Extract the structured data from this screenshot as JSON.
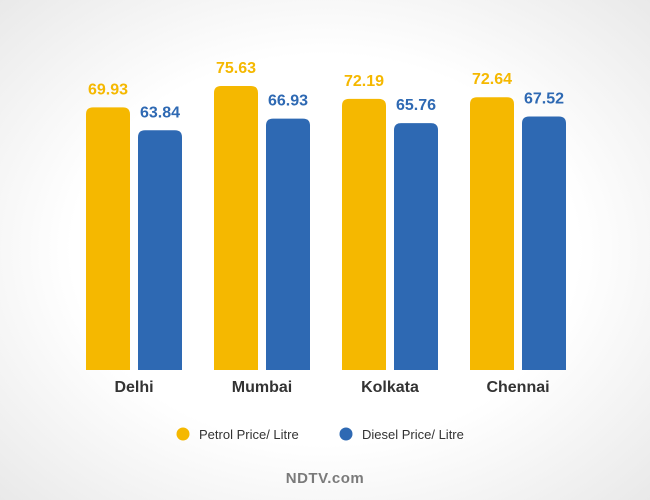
{
  "chart_data": {
    "type": "bar",
    "categories": [
      "Delhi",
      "Mumbai",
      "Kolkata",
      "Chennai"
    ],
    "series": [
      {
        "name": "Petrol Price/ Litre",
        "values": [
          69.93,
          75.63,
          72.19,
          72.64
        ],
        "color": "#f5b800",
        "label_color": "#f5b800"
      },
      {
        "name": "Diesel Price/ Litre",
        "values": [
          63.84,
          66.93,
          65.76,
          67.52
        ],
        "color": "#2e69b3",
        "label_color": "#2e69b3"
      }
    ],
    "ylim": [
      0,
      75.63
    ],
    "grid": false,
    "legend_position": "bottom"
  },
  "watermark": "NDTV.com"
}
